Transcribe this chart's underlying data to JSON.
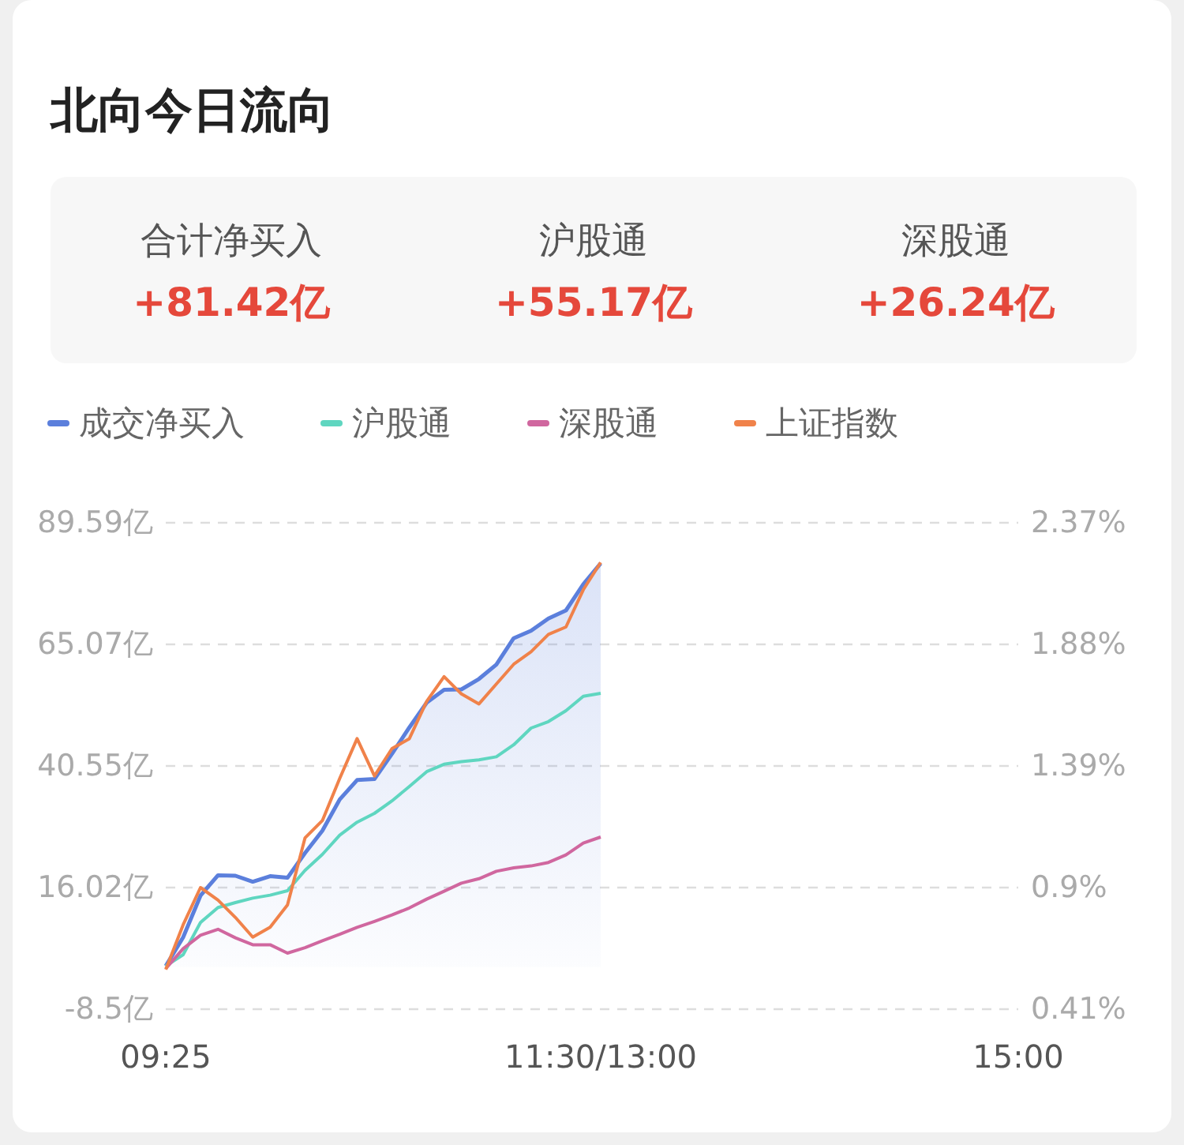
{
  "chart_data": {
    "type": "line",
    "title": "北向今日流向",
    "annotations": [
      "合计净买入",
      "+81.42亿",
      "沪股通",
      "+55.17亿",
      "深股通",
      "+26.24亿"
    ],
    "categories": [
      "09:25",
      null,
      null,
      null,
      null,
      null,
      null,
      null,
      null,
      null,
      null,
      null,
      null,
      null,
      null,
      null,
      null,
      null,
      null,
      null,
      null,
      null,
      null,
      null,
      null,
      "11:30/13:00",
      null,
      null,
      null,
      null,
      null,
      null,
      null,
      null,
      null,
      null,
      null,
      null,
      null,
      null,
      null,
      null,
      null,
      null,
      null,
      null,
      null,
      null,
      null,
      "15:00"
    ],
    "ylim": [
      -8.5,
      89.59
    ],
    "yticks": [
      {
        "value": 89.59,
        "label": "89.59亿"
      },
      {
        "value": 65.07,
        "label": "65.07亿"
      },
      {
        "value": 40.55,
        "label": "40.55亿"
      },
      {
        "value": 16.02,
        "label": "16.02亿"
      },
      {
        "value": -8.5,
        "label": "-8.5亿"
      }
    ],
    "y2lim": [
      0.41,
      2.37
    ],
    "y2ticks": [
      {
        "value": 2.37,
        "label": "2.37%"
      },
      {
        "value": 1.88,
        "label": "1.88%"
      },
      {
        "value": 1.39,
        "label": "1.39%"
      },
      {
        "value": 0.9,
        "label": "0.9%"
      },
      {
        "value": 0.41,
        "label": "0.41%"
      }
    ],
    "grid": "y",
    "legend": "top",
    "line_style": "solid",
    "series": [
      {
        "name": "成交净买入",
        "type": "area",
        "color": "#5b7fdc",
        "values": [
          0.2,
          6,
          14.4,
          18.5,
          18.4,
          17.2,
          18.3,
          18,
          23,
          27.5,
          33.8,
          37.7,
          37.9,
          43,
          48.3,
          53.3,
          55.9,
          56,
          58.1,
          61,
          66.3,
          67.8,
          70.3,
          71.9,
          77.2,
          81.4,
          null,
          null,
          null,
          null,
          null,
          null,
          null,
          null,
          null,
          null,
          null,
          null,
          null,
          null,
          null,
          null,
          null,
          null,
          null,
          null,
          null,
          null,
          null,
          null
        ]
      },
      {
        "name": "沪股通",
        "color": "#5fd6c0",
        "values": [
          0.2,
          2.5,
          9,
          12,
          13,
          13.9,
          14.5,
          15.4,
          19.5,
          22.7,
          26.6,
          29.2,
          31,
          33.5,
          36.4,
          39.4,
          40.9,
          41.4,
          41.8,
          42.4,
          44.8,
          48.2,
          49.5,
          51.7,
          54.6,
          55.2,
          null,
          null,
          null,
          null,
          null,
          null,
          null,
          null,
          null,
          null,
          null,
          null,
          null,
          null,
          null,
          null,
          null,
          null,
          null,
          null,
          null,
          null,
          null,
          null
        ]
      },
      {
        "name": "深股通",
        "color": "#d0679f",
        "values": [
          -0.3,
          3.7,
          6.4,
          7.6,
          5.9,
          4.5,
          4.5,
          2.8,
          3.9,
          5.3,
          6.6,
          8,
          9.2,
          10.5,
          11.9,
          13.7,
          15.3,
          16.9,
          17.8,
          19.3,
          20,
          20.4,
          21.1,
          22.6,
          25,
          26.2,
          null,
          null,
          null,
          null,
          null,
          null,
          null,
          null,
          null,
          null,
          null,
          null,
          null,
          null,
          null,
          null,
          null,
          null,
          null,
          null,
          null,
          null,
          null,
          null
        ]
      },
      {
        "name": "上证指数",
        "axis": "y2",
        "color": "#f0824a",
        "values": [
          0.57,
          0.75,
          0.9,
          0.85,
          0.78,
          0.7,
          0.74,
          0.83,
          1.1,
          1.17,
          1.34,
          1.5,
          1.35,
          1.46,
          1.5,
          1.65,
          1.75,
          1.68,
          1.64,
          1.72,
          1.8,
          1.85,
          1.92,
          1.95,
          2.1,
          2.21,
          null,
          null,
          null,
          null,
          null,
          null,
          null,
          null,
          null,
          null,
          null,
          null,
          null,
          null,
          null,
          null,
          null,
          null,
          null,
          null,
          null,
          null,
          null,
          null
        ]
      }
    ]
  }
}
